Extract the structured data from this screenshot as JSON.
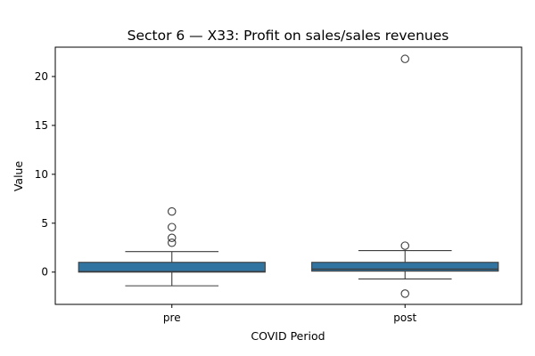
{
  "chart_data": {
    "type": "box",
    "title": "Sector 6 — X33: Profit on sales/sales revenues",
    "xlabel": "COVID Period",
    "ylabel": "Value",
    "categories": [
      "pre",
      "post"
    ],
    "ylim": [
      -3.3,
      23.0
    ],
    "yticks": [
      0,
      5,
      10,
      15,
      20
    ],
    "grid": false,
    "box_color": "#3274a1",
    "line_color": "#3d3d3d",
    "boxes": [
      {
        "category": "pre",
        "whisker_low": -1.4,
        "q1": 0.0,
        "median": 0.05,
        "q3": 1.0,
        "whisker_high": 2.1,
        "outliers": [
          6.2,
          4.6,
          3.5,
          3.0
        ]
      },
      {
        "category": "post",
        "whisker_low": -0.7,
        "q1": 0.1,
        "median": 0.3,
        "q3": 1.0,
        "whisker_high": 2.2,
        "outliers": [
          21.8,
          2.7,
          -2.2
        ]
      }
    ]
  }
}
